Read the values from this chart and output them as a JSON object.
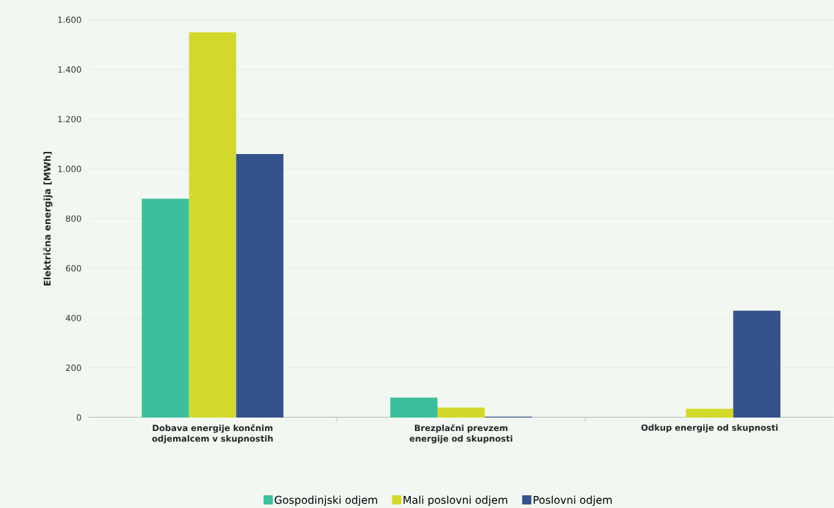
{
  "chart_data": {
    "type": "bar",
    "ylabel": "Električna energija [MWh]",
    "categories": [
      "Dobava energije končnim odjemalcem v skupnostih",
      "Brezplačni prevzem energije od skupnosti",
      "Odkup energije od skupnosti"
    ],
    "series": [
      {
        "name": "Gospodinjski odjem",
        "color": "#3dbf9c",
        "values": [
          880,
          80,
          0
        ]
      },
      {
        "name": "Mali poslovni odjem",
        "color": "#d3d92a",
        "values": [
          1550,
          40,
          35
        ]
      },
      {
        "name": "Poslovni odjem",
        "color": "#34538a",
        "values": [
          1060,
          3,
          430
        ]
      }
    ],
    "ylim": [
      0,
      1600
    ],
    "yticks": [
      0,
      200,
      400,
      600,
      800,
      {
        "value": 1000,
        "label": "1.000"
      },
      {
        "value": 1200,
        "label": "1.200"
      },
      {
        "value": 1400,
        "label": "1.400"
      },
      {
        "value": 1600,
        "label": "1.600"
      }
    ],
    "grid": "y",
    "legend": "bottom"
  }
}
